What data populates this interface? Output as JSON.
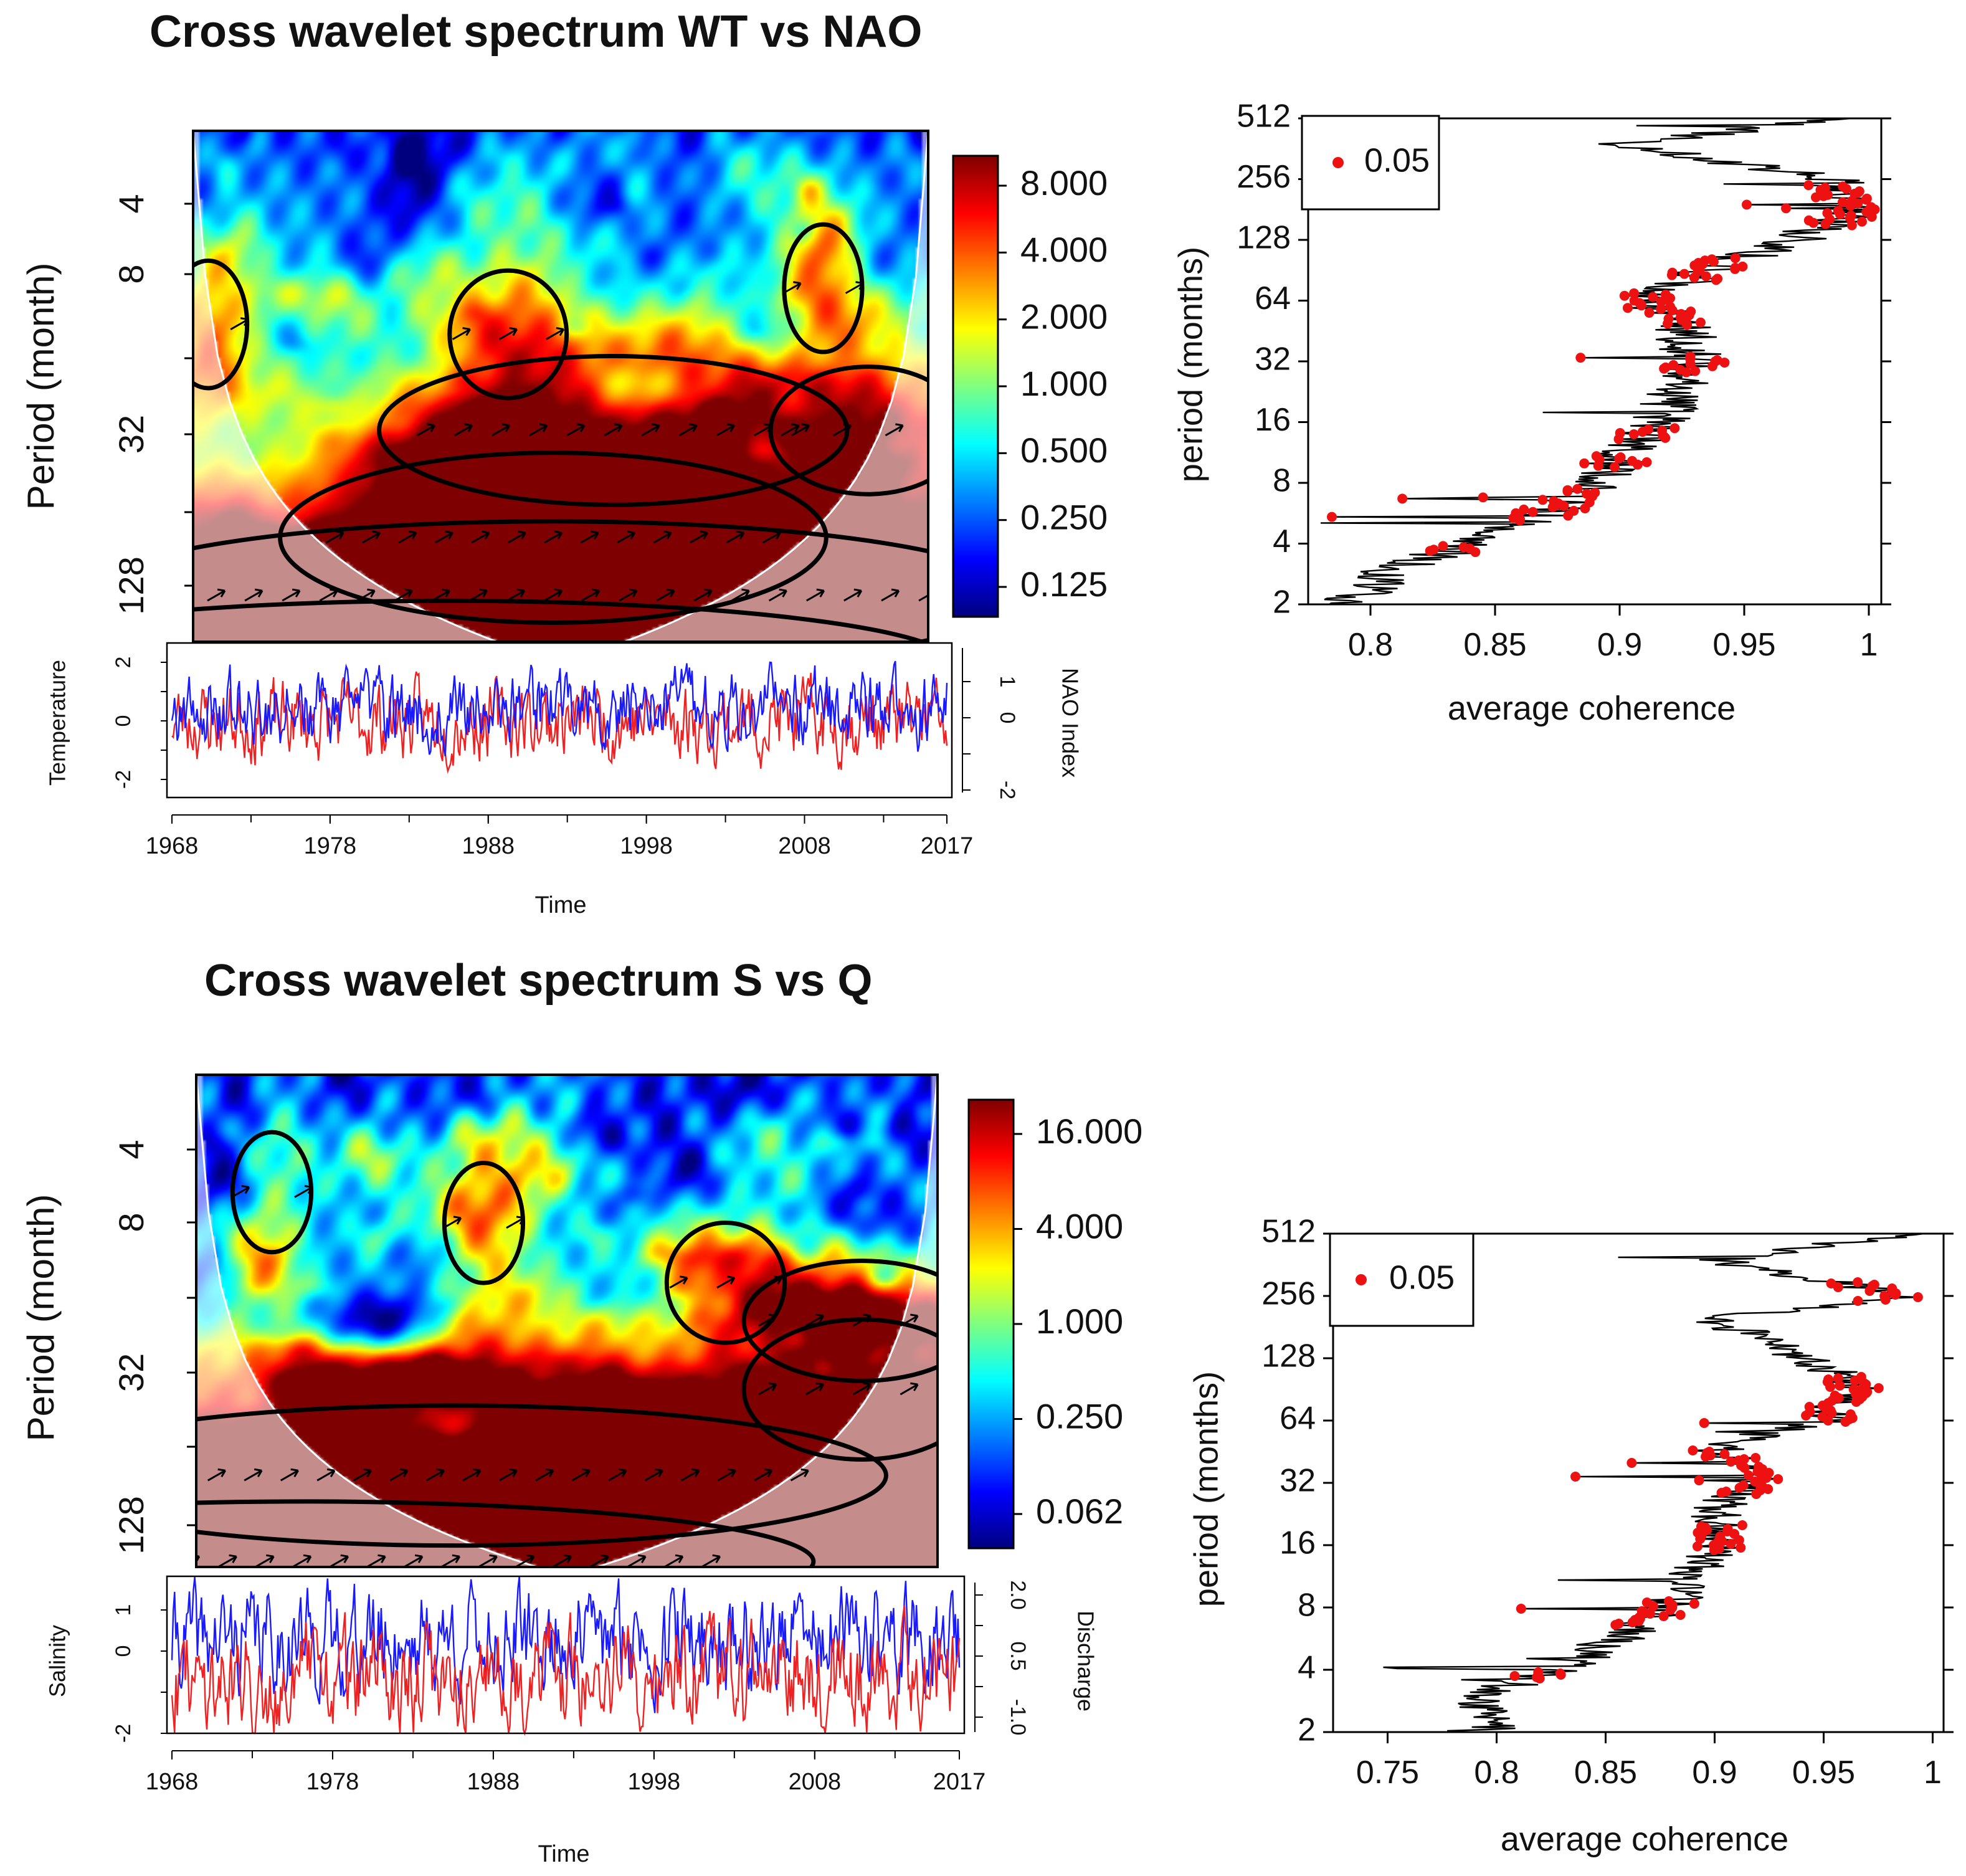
{
  "colors": {
    "palette": [
      "#00007F",
      "#0000FF",
      "#007FFF",
      "#00FFFF",
      "#7FFF7F",
      "#FFFF00",
      "#FF7F00",
      "#FF0000",
      "#7F0000"
    ],
    "series_blue": "#1a1aff",
    "series_red": "#ee2222",
    "significance": "#ee1111",
    "contour": "#000000",
    "coi_fade": "#ffffff"
  },
  "panels": [
    {
      "title": "Cross wavelet spectrum WT vs NAO",
      "spectrum": {
        "ylabel": "Period (month)",
        "yticks": [
          "4",
          "8",
          "32",
          "128"
        ],
        "colorbar": [
          "8.000",
          "4.000",
          "2.000",
          "1.000",
          "0.500",
          "0.250",
          "0.125"
        ]
      },
      "timeseries": {
        "left_label": "Temperature",
        "left_ticks": [
          "2",
          "0",
          "-2"
        ],
        "right_label": "NAO Index",
        "right_ticks": [
          "1",
          "0",
          "-2"
        ],
        "xticks": [
          "1968",
          "1978",
          "1988",
          "1998",
          "2008",
          "2017"
        ],
        "xlabel": "Time"
      },
      "coherence": {
        "ylabel": "period (months)",
        "xlabel": "average coherence",
        "legend": "0.05",
        "icon": "significance-dot-icon"
      }
    },
    {
      "title": "Cross wavelet spectrum S vs Q",
      "spectrum": {
        "ylabel": "Period (month)",
        "yticks": [
          "4",
          "8",
          "32",
          "128"
        ],
        "colorbar": [
          "16.000",
          "4.000",
          "1.000",
          "0.250",
          "0.062"
        ]
      },
      "timeseries": {
        "left_label": "Salinity",
        "left_ticks": [
          "1",
          "0",
          "-2"
        ],
        "right_label": "Discharge",
        "right_ticks": [
          "2.0",
          "0.5",
          "-1.0"
        ],
        "xticks": [
          "1968",
          "1978",
          "1988",
          "1998",
          "2008",
          "2017"
        ],
        "xlabel": "Time"
      },
      "coherence": {
        "ylabel": "period (months)",
        "xlabel": "average coherence",
        "legend": "0.05",
        "icon": "significance-dot-icon"
      }
    }
  ],
  "chart_data": [
    {
      "type": "heatmap",
      "title": "Cross wavelet spectrum WT vs NAO",
      "xlabel": "Time",
      "ylabel": "Period (month)",
      "x_range": [
        1968,
        2017
      ],
      "period_range": [
        2,
        180
      ],
      "scale_levels": [
        0.125,
        0.25,
        0.5,
        1,
        2,
        4,
        8
      ],
      "seed": 11,
      "noise_level": 0.55,
      "features": [
        {
          "t": 1992,
          "p": 120,
          "st": 24,
          "sp": 0.35,
          "amp": 3.2
        },
        {
          "t": 1992,
          "p": 72,
          "st": 14,
          "sp": 0.4,
          "amp": 1.6
        },
        {
          "t": 1996,
          "p": 28,
          "st": 12,
          "sp": 0.35,
          "amp": 1.6
        },
        {
          "t": 2013,
          "p": 28,
          "st": 5,
          "sp": 0.3,
          "amp": 1.4
        },
        {
          "t": 1989,
          "p": 12,
          "st": 3,
          "sp": 0.3,
          "amp": 1.6
        },
        {
          "t": 1969,
          "p": 11,
          "st": 2,
          "sp": 0.3,
          "amp": 1.5
        },
        {
          "t": 2010,
          "p": 8,
          "st": 2,
          "sp": 0.3,
          "amp": 1.5
        },
        {
          "t": 1985,
          "p": 220,
          "st": 26,
          "sp": 0.3,
          "amp": 2.4
        }
      ],
      "coi_factor": 1.35
    },
    {
      "type": "line",
      "title": "Temperature and NAO Index",
      "xlabel": "Time",
      "ylabel": "Temperature",
      "y2label": "NAO Index",
      "x_range": [
        1968,
        2017
      ],
      "ylim": [
        -2.7,
        2.7
      ],
      "y2lim": [
        -2.2,
        1.6
      ],
      "seed": 23,
      "series": [
        {
          "name": "Temperature",
          "color": "#ee2222",
          "axis": "left",
          "sd": 0.9
        },
        {
          "name": "NAO Index",
          "color": "#1a1aff",
          "axis": "right",
          "sd": 0.6
        }
      ],
      "xticks": [
        1968,
        1978,
        1988,
        1998,
        2008,
        2017
      ]
    },
    {
      "type": "line",
      "title": "Average coherence WT vs NAO",
      "xlabel": "average coherence",
      "ylabel": "period (months)",
      "xlim": [
        0.775,
        1.005
      ],
      "xticks": [
        0.8,
        0.85,
        0.9,
        0.95,
        1
      ],
      "yticks": [
        2,
        4,
        8,
        16,
        32,
        64,
        128,
        256,
        512
      ],
      "seed": 5,
      "profile": [
        [
          2,
          0.79
        ],
        [
          3,
          0.81
        ],
        [
          4,
          0.84
        ],
        [
          6,
          0.875
        ],
        [
          8,
          0.89
        ],
        [
          12,
          0.905
        ],
        [
          16,
          0.915
        ],
        [
          24,
          0.925
        ],
        [
          32,
          0.93
        ],
        [
          48,
          0.925
        ],
        [
          64,
          0.91
        ],
        [
          96,
          0.94
        ],
        [
          128,
          0.97
        ],
        [
          180,
          0.995
        ],
        [
          256,
          0.985
        ],
        [
          380,
          0.9
        ],
        [
          512,
          0.99
        ]
      ],
      "significant": [
        [
          3.6,
          3.9
        ],
        [
          5.2,
          7.5
        ],
        [
          9.5,
          11
        ],
        [
          13,
          15
        ],
        [
          28,
          34
        ],
        [
          48,
          70
        ],
        [
          80,
          105
        ],
        [
          150,
          240
        ]
      ],
      "legend": "0.05"
    },
    {
      "type": "heatmap",
      "title": "Cross wavelet spectrum S vs Q",
      "xlabel": "Time",
      "ylabel": "Period (month)",
      "x_range": [
        1968,
        2017
      ],
      "period_range": [
        2,
        200
      ],
      "scale_levels": [
        0.062,
        0.25,
        1,
        4,
        16
      ],
      "seed": 37,
      "noise_level": 0.7,
      "features": [
        {
          "t": 1985,
          "p": 85,
          "st": 22,
          "sp": 0.35,
          "amp": 3.5
        },
        {
          "t": 1975,
          "p": 190,
          "st": 26,
          "sp": 0.3,
          "amp": 3.3
        },
        {
          "t": 2012,
          "p": 38,
          "st": 6,
          "sp": 0.35,
          "amp": 2.2
        },
        {
          "t": 2012,
          "p": 20,
          "st": 6,
          "sp": 0.3,
          "amp": 1.6
        },
        {
          "t": 1973,
          "p": 6,
          "st": 2,
          "sp": 0.3,
          "amp": 1.5
        },
        {
          "t": 1987,
          "p": 8,
          "st": 2,
          "sp": 0.3,
          "amp": 1.5
        },
        {
          "t": 2003,
          "p": 14,
          "st": 3,
          "sp": 0.3,
          "amp": 1.4
        }
      ],
      "coi_factor": 1.35
    },
    {
      "type": "line",
      "title": "Salinity and Discharge",
      "xlabel": "Time",
      "ylabel": "Salinity",
      "y2label": "Discharge",
      "x_range": [
        1968,
        2017
      ],
      "ylim": [
        -2.2,
        1.5
      ],
      "y2lim": [
        -1.3,
        2.4
      ],
      "seed": 41,
      "series": [
        {
          "name": "Salinity",
          "color": "#1a1aff",
          "axis": "left",
          "sd": 0.8
        },
        {
          "name": "Discharge",
          "color": "#ee2222",
          "axis": "right",
          "sd": 0.8
        }
      ],
      "xticks": [
        1968,
        1978,
        1988,
        1998,
        2008,
        2017
      ]
    },
    {
      "type": "line",
      "title": "Average coherence S vs Q",
      "xlabel": "average coherence",
      "ylabel": "period (months)",
      "xlim": [
        0.725,
        1.005
      ],
      "xticks": [
        0.75,
        0.8,
        0.85,
        0.9,
        0.95,
        1
      ],
      "yticks": [
        2,
        4,
        8,
        16,
        32,
        64,
        128,
        256,
        512
      ],
      "seed": 9,
      "profile": [
        [
          2,
          0.8
        ],
        [
          3,
          0.79
        ],
        [
          4,
          0.83
        ],
        [
          6,
          0.86
        ],
        [
          8,
          0.88
        ],
        [
          12,
          0.89
        ],
        [
          16,
          0.905
        ],
        [
          24,
          0.9
        ],
        [
          32,
          0.92
        ],
        [
          48,
          0.9
        ],
        [
          64,
          0.95
        ],
        [
          96,
          0.965
        ],
        [
          128,
          0.94
        ],
        [
          200,
          0.9
        ],
        [
          256,
          0.99
        ],
        [
          380,
          0.9
        ],
        [
          512,
          0.99
        ]
      ],
      "significant": [
        [
          3.6,
          3.9
        ],
        [
          6.5,
          8.6
        ],
        [
          15,
          20
        ],
        [
          28,
          46
        ],
        [
          62,
          105
        ],
        [
          240,
          300
        ]
      ],
      "legend": "0.05"
    }
  ]
}
